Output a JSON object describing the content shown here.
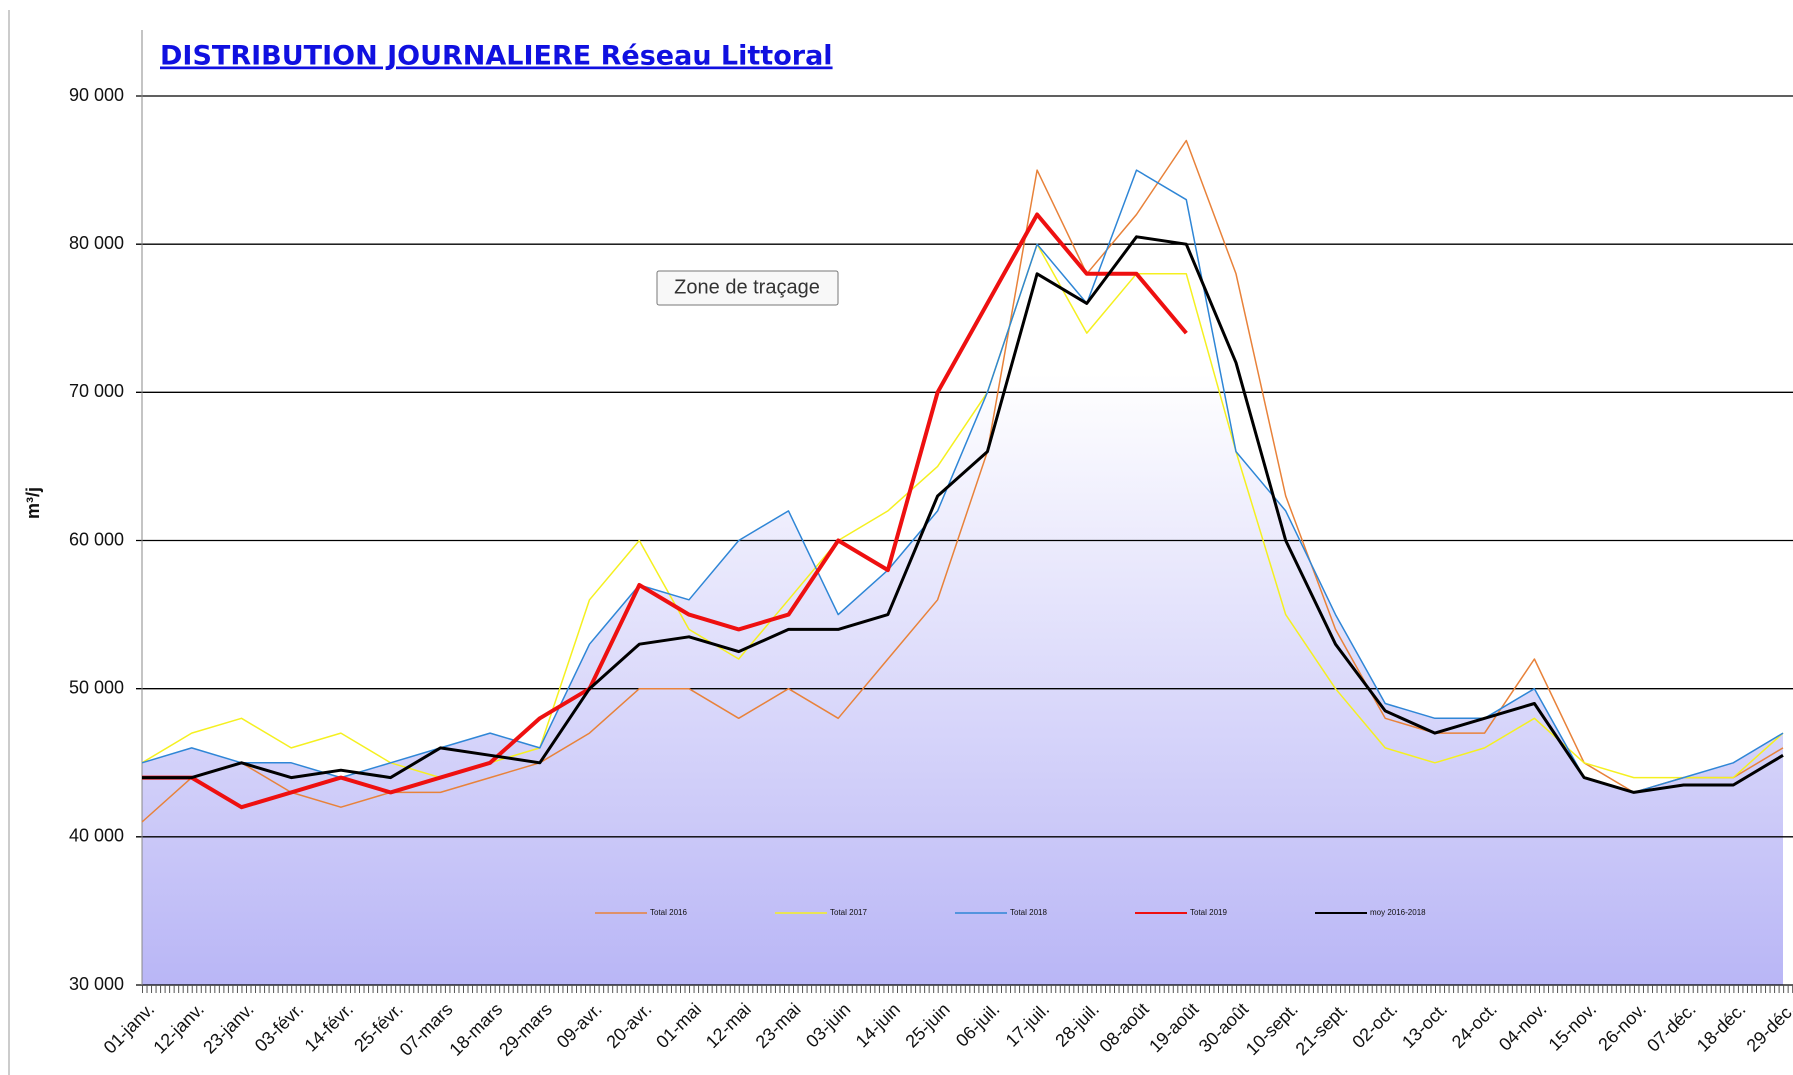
{
  "chart_data": {
    "type": "line",
    "title": "DISTRIBUTION JOURNALIERE Réseau Littoral",
    "y_label": "m³/j",
    "tooltip": "Zone de traçage",
    "categories": [
      "01-janv.",
      "12-janv.",
      "23-janv.",
      "03-févr.",
      "14-févr.",
      "25-févr.",
      "07-mars",
      "18-mars",
      "29-mars",
      "09-avr.",
      "20-avr.",
      "01-mai",
      "12-mai",
      "23-mai",
      "03-juin",
      "14-juin",
      "25-juin",
      "06-juil.",
      "17-juil.",
      "28-juil.",
      "08-août",
      "19-août",
      "30-août",
      "10-sept.",
      "21-sept.",
      "02-oct.",
      "13-oct.",
      "24-oct.",
      "04-nov.",
      "15-nov.",
      "26-nov.",
      "07-déc.",
      "18-déc.",
      "29-déc."
    ],
    "ylim": [
      30000,
      90000
    ],
    "yticks": [
      {
        "value": 30000,
        "label": "30 000"
      },
      {
        "value": 40000,
        "label": "40 000"
      },
      {
        "value": 50000,
        "label": "50 000"
      },
      {
        "value": 60000,
        "label": "60 000"
      },
      {
        "value": 70000,
        "label": "70 000"
      },
      {
        "value": 80000,
        "label": "80 000"
      },
      {
        "value": 90000,
        "label": "90 000"
      }
    ],
    "grid": true,
    "series": [
      {
        "name": "Total 2016",
        "color": "#e8823a",
        "width": 1.5,
        "values": [
          41000,
          44000,
          45000,
          43000,
          42000,
          43000,
          43000,
          44000,
          45000,
          47000,
          50000,
          50000,
          48000,
          50000,
          48000,
          52000,
          56000,
          66000,
          85000,
          78000,
          82000,
          87000,
          78000,
          63000,
          54000,
          48000,
          47000,
          47000,
          52000,
          45000,
          43000,
          44000,
          44000,
          46000
        ]
      },
      {
        "name": "Total 2017",
        "color": "#f5f020",
        "width": 1.5,
        "values": [
          45000,
          47000,
          48000,
          46000,
          47000,
          45000,
          44000,
          45000,
          46000,
          56000,
          60000,
          54000,
          52000,
          56000,
          60000,
          62000,
          65000,
          70000,
          80000,
          74000,
          78000,
          78000,
          66000,
          55000,
          50000,
          46000,
          45000,
          46000,
          48000,
          45000,
          44000,
          44000,
          44000,
          47000
        ]
      },
      {
        "name": "Total 2018",
        "color": "#2f86d6",
        "width": 1.5,
        "values": [
          45000,
          46000,
          45000,
          45000,
          44000,
          45000,
          46000,
          47000,
          46000,
          53000,
          57000,
          56000,
          60000,
          62000,
          55000,
          58000,
          62000,
          70000,
          80000,
          76000,
          85000,
          83000,
          66000,
          62000,
          55000,
          49000,
          48000,
          48000,
          50000,
          44000,
          43000,
          44000,
          45000,
          47000
        ]
      },
      {
        "name": "Total 2019",
        "color": "#ee1010",
        "width": 4,
        "values": [
          44000,
          44000,
          42000,
          43000,
          44000,
          43000,
          44000,
          45000,
          48000,
          50000,
          57000,
          55000,
          54000,
          55000,
          60000,
          58000,
          70000,
          76000,
          82000,
          78000,
          78000,
          74000,
          null,
          null,
          null,
          null,
          null,
          null,
          null,
          null,
          null,
          null,
          null,
          null
        ]
      },
      {
        "name": "moy 2016-2018",
        "color": "#000000",
        "width": 3,
        "values": [
          44000,
          44000,
          45000,
          44000,
          44500,
          44000,
          46000,
          45500,
          45000,
          50000,
          53000,
          53500,
          52500,
          54000,
          54000,
          55000,
          63000,
          66000,
          78000,
          76000,
          80500,
          80000,
          72000,
          60000,
          53000,
          48500,
          47000,
          48000,
          49000,
          44000,
          43000,
          43500,
          43500,
          45500
        ]
      }
    ]
  }
}
